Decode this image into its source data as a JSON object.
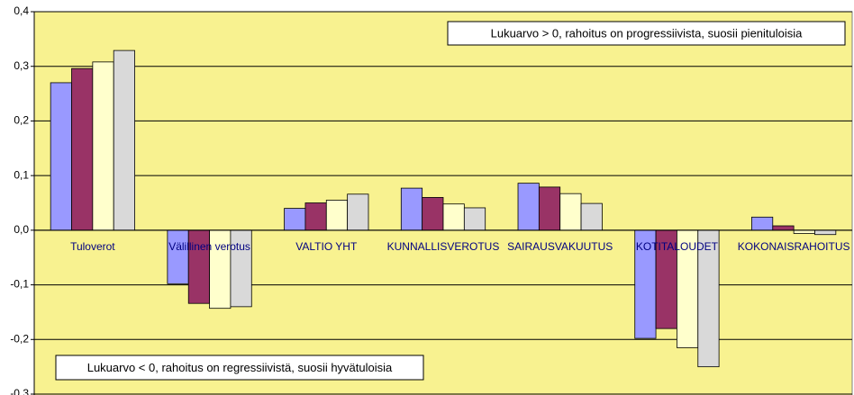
{
  "chart_data": {
    "type": "bar",
    "categories": [
      "Tuloverot",
      "Välillinen verotus",
      "VALTIO YHT",
      "KUNNALLISVEROTUS",
      "SAIRAUSVAKUUTUS",
      "KOTITALOUDET",
      "KOKONAISRAHOITUS"
    ],
    "series": [
      {
        "color": "#9999ff",
        "values": [
          0.27,
          -0.098,
          0.04,
          0.077,
          0.086,
          -0.198,
          0.024
        ]
      },
      {
        "color": "#993366",
        "values": [
          0.296,
          -0.134,
          0.05,
          0.06,
          0.079,
          -0.18,
          0.008
        ]
      },
      {
        "color": "#ffffcc",
        "values": [
          0.308,
          -0.143,
          0.055,
          0.048,
          0.067,
          -0.215,
          -0.006
        ]
      },
      {
        "color": "#d9d9d9",
        "values": [
          0.329,
          -0.14,
          0.066,
          0.041,
          0.049,
          -0.25,
          -0.008
        ]
      }
    ],
    "ylim": [
      -0.3,
      0.4
    ],
    "yticks": [
      {
        "value": 0.4,
        "label": "0,4"
      },
      {
        "value": 0.3,
        "label": "0,3"
      },
      {
        "value": 0.2,
        "label": "0,2"
      },
      {
        "value": 0.1,
        "label": "0,1"
      },
      {
        "value": 0,
        "label": "0,0"
      },
      {
        "value": -0.1,
        "label": "-0,1"
      },
      {
        "value": -0.2,
        "label": "-0,2"
      },
      {
        "value": -0.3,
        "label": "-0,3"
      }
    ],
    "grid": true,
    "plot_background": "#f8f290",
    "annotations": [
      "Lukuarvo > 0, rahoitus on progressiivista, suosii pienituloisia",
      "Lukuarvo < 0, rahoitus on regressiivistä, suosii hyvätuloisia"
    ]
  }
}
